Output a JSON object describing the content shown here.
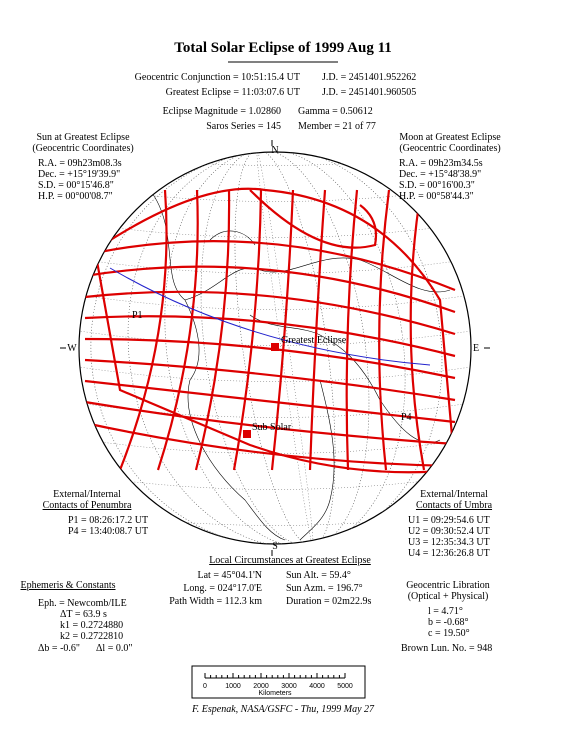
{
  "title": "Total Solar Eclipse of 1999 Aug 11",
  "header": {
    "rows": [
      [
        "Geocentric Conjunction = 10:51:15.4 UT",
        "J.D. = 2451401.952262"
      ],
      [
        "Greatest Eclipse = 11:03:07.6 UT",
        "J.D. = 2451401.960505"
      ],
      [
        "Eclipse Magnitude = 1.02860",
        "Gamma = 0.50612"
      ],
      [
        "Saros Series = 145",
        "Member = 21 of 77"
      ]
    ]
  },
  "sun": {
    "title": "Sun at Greatest Eclipse",
    "subtitle": "(Geocentric Coordinates)",
    "lines": [
      "R.A. = 09h23m08.3s",
      "Dec. = +15°19'39.9\"",
      "S.D. = 00°15'46.8\"",
      "H.P. = 00°00'08.7\""
    ]
  },
  "moon": {
    "title": "Moon at Greatest Eclipse",
    "subtitle": "(Geocentric Coordinates)",
    "lines": [
      "R.A. = 09h23m34.5s",
      "Dec. = +15°48'38.9\"",
      "S.D. = 00°16'00.3\"",
      "H.P. = 00°58'44.3\""
    ]
  },
  "globe": {
    "labels": {
      "north": "N",
      "south": "S",
      "west": "W",
      "east": "E",
      "p1": "P1",
      "p4": "P4",
      "greatest": "Greatest Eclipse",
      "subsolar": "Sub Solar"
    }
  },
  "penumbra": {
    "title": "External/Internal",
    "subtitle": "Contacts of Penumbra",
    "lines": [
      "P1 = 08:26:17.2 UT",
      "P4 = 13:40:08.7 UT"
    ]
  },
  "umbra": {
    "title": "External/Internal",
    "subtitle": "Contacts of Umbra",
    "lines": [
      "U1 = 09:29:54.6 UT",
      "U2 = 09:30:52.4 UT",
      "U3 = 12:35:34.3 UT",
      "U4 = 12:36:26.8 UT"
    ]
  },
  "local": {
    "title": "Local Circumstances at Greatest Eclipse",
    "rows": [
      [
        "Lat = 45°04.1'N",
        "Sun Alt. = 59.4°"
      ],
      [
        "Long. = 024°17.0'E",
        "Sun Azm. = 196.7°"
      ],
      [
        "Path Width = 112.3 km",
        "Duration = 02m22.9s"
      ]
    ]
  },
  "ephemeris": {
    "title": "Ephemeris & Constants",
    "lines": [
      "Eph. = Newcomb/ILE",
      "ΔT = 63.9 s",
      "k1 = 0.2724880",
      "k2 = 0.2722810"
    ],
    "last": [
      "Δb = -0.6\"",
      "Δl = 0.0\""
    ]
  },
  "libration": {
    "title": "Geocentric Libration",
    "subtitle": "(Optical + Physical)",
    "lines": [
      "l = 4.71°",
      "b = -0.68°",
      "c = 19.50°"
    ],
    "last": "Brown Lun. No. = 948"
  },
  "scale": {
    "ticks": [
      0,
      1000,
      2000,
      3000,
      4000,
      5000
    ],
    "unit": "Kilometers"
  },
  "footer": "F. Espenak, NASA/GSFC - Thu, 1999 May 27"
}
